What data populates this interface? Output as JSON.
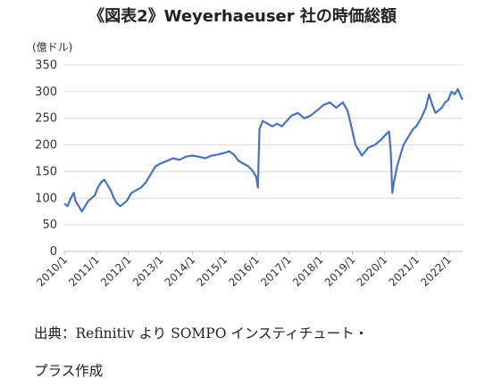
{
  "title": "《図表2》Weyerhaeuser 社の時価総額",
  "source_line1": "出典：Refinitiv より SOMPO インスティチュート・",
  "source_line2": "プラス作成",
  "chart_data": {
    "type": "line",
    "title": "《図表2》Weyerhaeuser 社の時価総額",
    "ylabel": "(億ドル)",
    "xlabel": "",
    "ylim": [
      0,
      350
    ],
    "yticks": [
      0,
      50,
      100,
      150,
      200,
      250,
      300,
      350
    ],
    "xlim": [
      2010.0,
      2022.45
    ],
    "xtick_positions": [
      2010,
      2011,
      2012,
      2013,
      2014,
      2015,
      2016,
      2017,
      2018,
      2019,
      2020,
      2021,
      2022
    ],
    "xtick_labels": [
      "2010/1",
      "2011/1",
      "2012/1",
      "2013/1",
      "2014/1",
      "2015/1",
      "2016/1",
      "2017/1",
      "2018/1",
      "2019/1",
      "2020/1",
      "2021/1",
      "2022/1"
    ],
    "grid": true,
    "legend": "none",
    "line_color": "#4472C4",
    "series": [
      {
        "x": [
          2010.0,
          2010.1,
          2010.2,
          2010.3,
          2010.35,
          2010.45,
          2010.55,
          2010.65,
          2010.75,
          2010.85,
          2010.95,
          2011.05,
          2011.15,
          2011.25,
          2011.35,
          2011.45,
          2011.55,
          2011.65,
          2011.75,
          2011.85,
          2011.95,
          2012.1,
          2012.25,
          2012.4,
          2012.55,
          2012.7,
          2012.85,
          2013.0,
          2013.2,
          2013.4,
          2013.6,
          2013.8,
          2014.0,
          2014.2,
          2014.4,
          2014.6,
          2014.8,
          2015.0,
          2015.15,
          2015.3,
          2015.45,
          2015.6,
          2015.75,
          2015.9,
          2016.0,
          2016.05,
          2016.1,
          2016.2,
          2016.35,
          2016.5,
          2016.65,
          2016.8,
          2016.95,
          2017.1,
          2017.3,
          2017.5,
          2017.7,
          2017.9,
          2018.1,
          2018.3,
          2018.5,
          2018.7,
          2018.85,
          2018.95,
          2019.1,
          2019.3,
          2019.5,
          2019.7,
          2019.9,
          2020.05,
          2020.15,
          2020.2,
          2020.25,
          2020.3,
          2020.4,
          2020.5,
          2020.6,
          2020.7,
          2020.8,
          2020.9,
          2021.0,
          2021.15,
          2021.3,
          2021.4,
          2021.5,
          2021.6,
          2021.7,
          2021.8,
          2021.9,
          2022.0,
          2022.1,
          2022.2,
          2022.3,
          2022.4,
          2022.45
        ],
        "y": [
          90,
          85,
          100,
          110,
          95,
          85,
          75,
          85,
          95,
          100,
          105,
          120,
          130,
          135,
          125,
          115,
          100,
          90,
          85,
          90,
          95,
          110,
          115,
          120,
          130,
          145,
          160,
          165,
          170,
          175,
          172,
          178,
          180,
          178,
          175,
          180,
          182,
          185,
          188,
          182,
          170,
          165,
          160,
          150,
          140,
          120,
          230,
          245,
          240,
          235,
          240,
          235,
          245,
          255,
          260,
          250,
          255,
          265,
          275,
          280,
          270,
          280,
          265,
          240,
          200,
          180,
          195,
          200,
          210,
          220,
          225,
          190,
          110,
          130,
          160,
          180,
          200,
          210,
          220,
          230,
          235,
          250,
          270,
          295,
          275,
          260,
          265,
          270,
          280,
          285,
          300,
          295,
          305,
          290,
          285
        ]
      }
    ]
  }
}
